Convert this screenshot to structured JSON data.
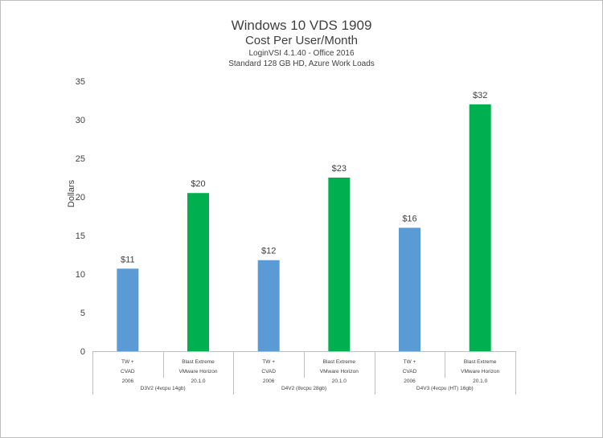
{
  "chart_data": {
    "type": "bar",
    "title": "Windows 10 VDS 1909",
    "subtitle": "Cost Per User/Month",
    "subtitle2": "LoginVSI 4.1.40 - Office 2016",
    "subtitle3": "Standard  128 GB HD, Azure Work Loads",
    "ylabel": "Dollars",
    "xlabel": "",
    "ylim": [
      0,
      35
    ],
    "yticks": [
      0,
      5,
      10,
      15,
      20,
      25,
      30,
      35
    ],
    "grid": false,
    "legend": "none",
    "colors": {
      "TW": "#5b9bd5",
      "Blast": "#00b050"
    },
    "groups": [
      {
        "label": "D3V2 (4vcpu 14gb)",
        "bars": [
          {
            "category": [
              "TW +",
              "CVAD",
              "2006"
            ],
            "value": 10.7,
            "label": "$11",
            "color_key": "TW"
          },
          {
            "category": [
              "Blast Extreme",
              "VMware Horizon",
              "20.1.0"
            ],
            "value": 20.5,
            "label": "$20",
            "color_key": "Blast"
          }
        ]
      },
      {
        "label": "D4V2 (8vcpu 28gb)",
        "bars": [
          {
            "category": [
              "TW +",
              "CVAD",
              "2006"
            ],
            "value": 11.8,
            "label": "$12",
            "color_key": "TW"
          },
          {
            "category": [
              "Blast Extreme",
              "VMware Horizon",
              "20.1.0"
            ],
            "value": 22.5,
            "label": "$23",
            "color_key": "Blast"
          }
        ]
      },
      {
        "label": "D4V3 (4vcpu (HT) 16gb)",
        "bars": [
          {
            "category": [
              "TW +",
              "CVAD",
              "2006"
            ],
            "value": 16.0,
            "label": "$16",
            "color_key": "TW"
          },
          {
            "category": [
              "Blast Extreme",
              "VMware Horizon",
              "20.1.0"
            ],
            "value": 32.0,
            "label": "$32",
            "color_key": "Blast"
          }
        ]
      }
    ]
  }
}
